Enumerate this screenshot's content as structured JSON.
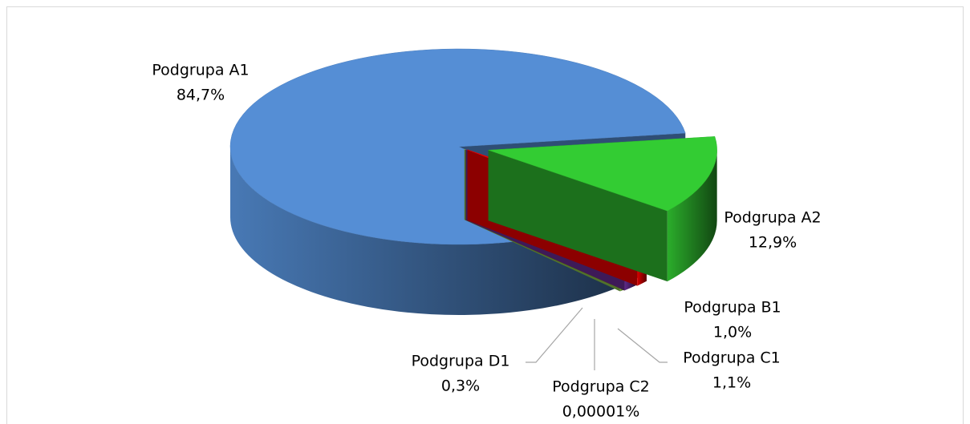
{
  "chart_data": {
    "type": "pie",
    "categories": [
      "Podgrupa A1",
      "Podgrupa A2",
      "Podgrupa B1",
      "Podgrupa C1",
      "Podgrupa C2",
      "Podgrupa D1"
    ],
    "values": [
      84.7,
      12.9,
      1.0,
      1.1,
      1e-05,
      0.3
    ],
    "value_labels": [
      "84,7%",
      "12,9%",
      "1,0%",
      "1,1%",
      "0,00001%",
      "0,3%"
    ],
    "colors": [
      "#558ed5",
      "#33cc33",
      "#ff0000",
      "#7030a0",
      "#a6a600",
      "#92d050"
    ]
  }
}
